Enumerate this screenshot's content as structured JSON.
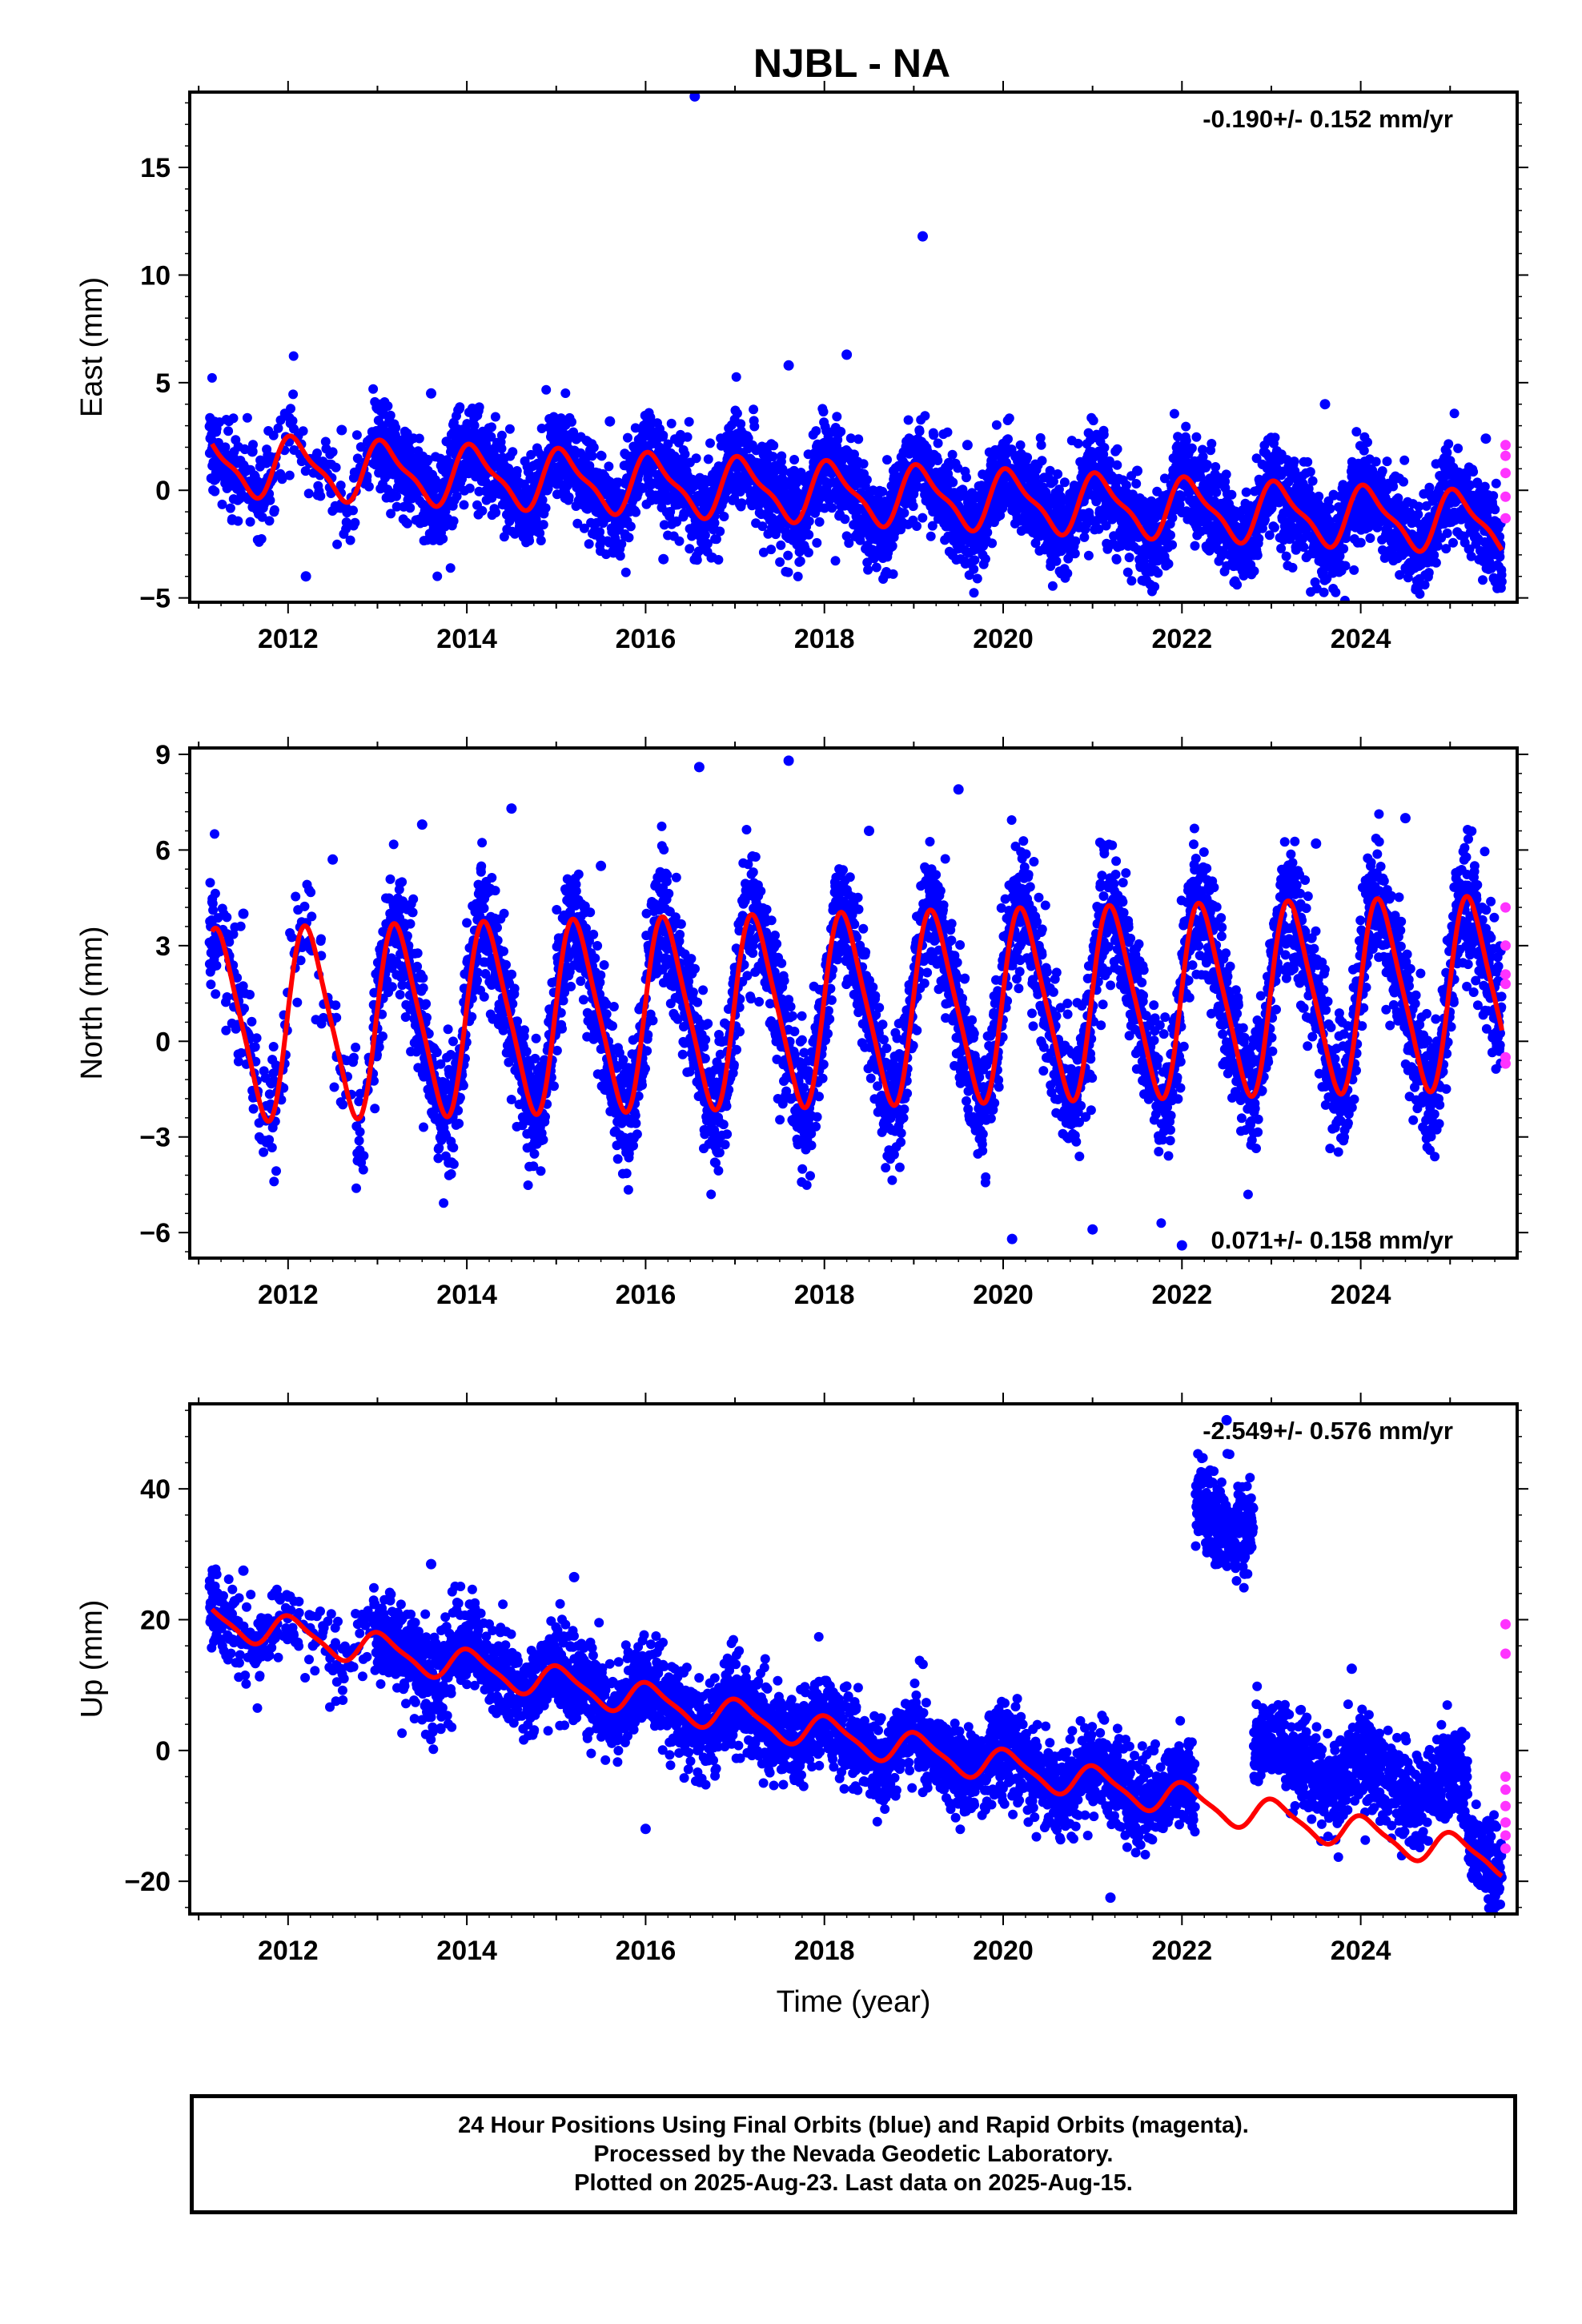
{
  "title": "NJBL - NA",
  "footer": {
    "line1": "24 Hour Positions Using Final Orbits (blue) and Rapid Orbits (magenta).",
    "line2": "Processed by the Nevada Geodetic Laboratory.",
    "line3": "Plotted on 2025-Aug-23. Last data on 2025-Aug-15."
  },
  "colors": {
    "final": "#0000ff",
    "rapid": "#ff33ff",
    "model": "#ff0000",
    "frame": "#000000"
  },
  "chart_data": [
    {
      "type": "scatter",
      "ylabel": "East (mm)",
      "xlabel": "",
      "rate": "-0.190+/- 0.152 mm/yr",
      "xlim": [
        2010.9,
        2025.75
      ],
      "ylim": [
        -5.2,
        18.5
      ],
      "x_ticks": [
        2012,
        2014,
        2016,
        2018,
        2020,
        2022,
        2024
      ],
      "y_ticks": [
        -5,
        0,
        5,
        10,
        15
      ],
      "x_tick_labels": [
        "2012",
        "2014",
        "2016",
        "2018",
        "2020",
        "2022",
        "2024"
      ],
      "y_tick_labels": [
        "−5",
        "0",
        "5",
        "10",
        "15"
      ],
      "model": {
        "base": 1.2,
        "slope": -0.19,
        "ref_year": 2011.2,
        "annual_amp": 1.3,
        "annual_phase": 1.0,
        "semiannual_amp": 0.4,
        "noise_sd": 1.1
      },
      "series": [
        {
          "name": "Final Orbits",
          "values": [
            [
              2011.3,
              0.9
            ],
            [
              2011.6,
              1.8
            ],
            [
              2012.2,
              -4.0
            ],
            [
              2012.6,
              2.8
            ],
            [
              2013.6,
              4.5
            ],
            [
              2014.4,
              1.5
            ],
            [
              2015.6,
              3.2
            ],
            [
              2016.2,
              -3.2
            ],
            [
              2016.55,
              18.3
            ],
            [
              2017.6,
              5.8
            ],
            [
              2018.25,
              6.3
            ],
            [
              2019.1,
              11.8
            ],
            [
              2019.6,
              2.1
            ],
            [
              2020.5,
              -2.2
            ],
            [
              2021.5,
              0.9
            ],
            [
              2022.6,
              -3.0
            ],
            [
              2023.6,
              4.0
            ],
            [
              2024.6,
              -3.6
            ],
            [
              2025.4,
              2.4
            ]
          ]
        },
        {
          "name": "Rapid Orbits",
          "values": [
            [
              2025.62,
              2.1
            ],
            [
              2025.62,
              1.6
            ],
            [
              2025.62,
              0.8
            ],
            [
              2025.62,
              -0.3
            ],
            [
              2025.62,
              -1.3
            ]
          ]
        }
      ]
    },
    {
      "type": "scatter",
      "ylabel": "North (mm)",
      "xlabel": "",
      "rate": "0.071+/- 0.158 mm/yr",
      "xlim": [
        2010.9,
        2025.75
      ],
      "ylim": [
        -6.8,
        9.2
      ],
      "x_ticks": [
        2012,
        2014,
        2016,
        2018,
        2020,
        2022,
        2024
      ],
      "y_ticks": [
        -6,
        -3,
        0,
        3,
        6,
        9
      ],
      "x_tick_labels": [
        "2012",
        "2014",
        "2016",
        "2018",
        "2020",
        "2022",
        "2024"
      ],
      "y_tick_labels": [
        "−6",
        "−3",
        "0",
        "3",
        "6",
        "9"
      ],
      "model": {
        "base": 0.5,
        "slope": 0.071,
        "ref_year": 2011.2,
        "annual_amp": 2.9,
        "annual_phase": 0.1,
        "semiannual_amp": 0.5,
        "noise_sd": 1.0
      },
      "series": [
        {
          "name": "Final Orbits",
          "values": [
            [
              2011.5,
              4.0
            ],
            [
              2012.5,
              5.7
            ],
            [
              2013.5,
              6.8
            ],
            [
              2014.5,
              7.3
            ],
            [
              2015.5,
              5.5
            ],
            [
              2016.6,
              8.6
            ],
            [
              2017.6,
              8.8
            ],
            [
              2018.5,
              6.6
            ],
            [
              2019.5,
              7.9
            ],
            [
              2020.1,
              -6.2
            ],
            [
              2021.0,
              -5.9
            ],
            [
              2022.0,
              -6.4
            ],
            [
              2023.5,
              6.2
            ],
            [
              2024.5,
              7.0
            ]
          ]
        },
        {
          "name": "Rapid Orbits",
          "values": [
            [
              2025.62,
              4.2
            ],
            [
              2025.62,
              3.0
            ],
            [
              2025.62,
              2.1
            ],
            [
              2025.62,
              1.8
            ],
            [
              2025.62,
              -0.5
            ],
            [
              2025.62,
              -0.7
            ]
          ]
        }
      ]
    },
    {
      "type": "scatter",
      "ylabel": "Up (mm)",
      "xlabel": "Time (year)",
      "rate": "-2.549+/- 0.576 mm/yr",
      "xlim": [
        2010.9,
        2025.75
      ],
      "ylim": [
        -25,
        53
      ],
      "x_ticks": [
        2012,
        2014,
        2016,
        2018,
        2020,
        2022,
        2024
      ],
      "y_ticks": [
        -20,
        0,
        20,
        40
      ],
      "x_tick_labels": [
        "2012",
        "2014",
        "2016",
        "2018",
        "2020",
        "2022",
        "2024"
      ],
      "y_tick_labels": [
        "−20",
        "0",
        "20",
        "40"
      ],
      "model": {
        "base": 20.0,
        "slope": -2.549,
        "ref_year": 2011.2,
        "annual_amp": 2.4,
        "annual_phase": 1.2,
        "semiannual_amp": 0.6,
        "noise_sd": 3.5,
        "offset_segments": [
          [
            2022.15,
            2022.8,
            44.0
          ],
          [
            2022.8,
            2025.2,
            9.0
          ]
        ]
      },
      "series": [
        {
          "name": "Final Orbits",
          "values": [
            [
              2011.5,
              27.5
            ],
            [
              2013.6,
              28.5
            ],
            [
              2015.2,
              26.5
            ],
            [
              2016.0,
              -12.0
            ],
            [
              2021.2,
              -22.5
            ],
            [
              2022.5,
              50.5
            ],
            [
              2022.7,
              27.0
            ],
            [
              2023.9,
              12.5
            ],
            [
              2025.4,
              -21.0
            ]
          ]
        },
        {
          "name": "Rapid Orbits",
          "values": [
            [
              2025.62,
              19.3
            ],
            [
              2025.62,
              14.8
            ],
            [
              2025.62,
              -4.0
            ],
            [
              2025.62,
              -6.0
            ],
            [
              2025.62,
              -8.5
            ],
            [
              2025.62,
              -11.0
            ],
            [
              2025.62,
              -13.0
            ],
            [
              2025.62,
              -15.0
            ]
          ]
        }
      ]
    }
  ]
}
